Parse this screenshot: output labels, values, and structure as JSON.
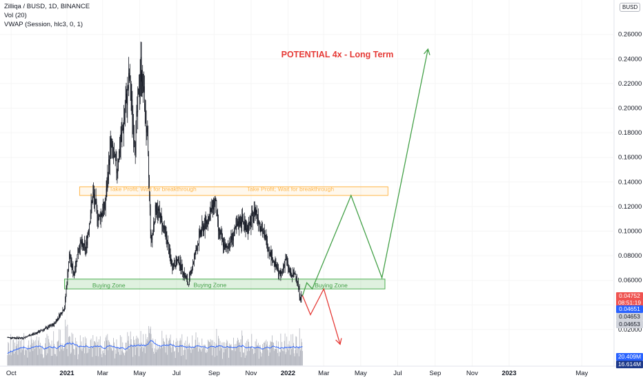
{
  "legend": {
    "title": "Zilliqa / BUSD, 1D, BINANCE",
    "volume": "Vol (20)",
    "vwap": "VWAP (Session, hlc3, 0, 1)"
  },
  "currency_button": "BUSD",
  "annotations": {
    "headline": "POTENTIAL 4x - Long Term",
    "take_profit_1": "Take Profit; Wait for breakthrough",
    "take_profit_2": "Take Profit; Wait for breakthrough",
    "buying_zone_1": "Buying Zone",
    "buying_zone_2": "Buying Zone",
    "buying_zone_3": "Buying Zone"
  },
  "badges": {
    "last_price": "0.04752",
    "countdown": "08:51:19",
    "vwap_price": "0.04651",
    "price_a": "0.04653",
    "price_b": "0.04653",
    "volume_ma": "20.409M",
    "volume": "16.614M"
  },
  "colors": {
    "zone_green": "#4caf50",
    "zone_orange": "#ffb74d",
    "headline_red": "#e53935",
    "projection_green": "#43a047",
    "projection_red": "#e53935",
    "vwap_blue": "#2962ff",
    "candle": "#131722",
    "volume_bar": "#b2b5be",
    "badge_red": "#ef5350",
    "badge_blue": "#2962ff",
    "badge_gray": "#d1d4dc",
    "badge_navy": "#1e3a8a"
  },
  "chart_data": {
    "type": "line",
    "symbol": "Zilliqa / BUSD, 1D, BINANCE",
    "x_ticks": [
      "Oct",
      "2021",
      "Mar",
      "May",
      "Jul",
      "Sep",
      "Nov",
      "2022",
      "Mar",
      "May",
      "Jul",
      "Sep",
      "Nov",
      "2023",
      "May"
    ],
    "y_ticks": [
      "0.02000",
      "0.04000",
      "0.06000",
      "0.08000",
      "0.10000",
      "0.12000",
      "0.14000",
      "0.16000",
      "0.18000",
      "0.20000",
      "0.22000",
      "0.24000",
      "0.26000"
    ],
    "ylim": [
      0.0,
      0.274
    ],
    "price_path": [
      [
        "2020-09-25",
        0.0135
      ],
      [
        "2020-10-20",
        0.013
      ],
      [
        "2020-11-15",
        0.018
      ],
      [
        "2020-12-10",
        0.024
      ],
      [
        "2020-12-28",
        0.038
      ],
      [
        "2021-01-05",
        0.08
      ],
      [
        "2021-01-12",
        0.065
      ],
      [
        "2021-01-22",
        0.09
      ],
      [
        "2021-02-01",
        0.085
      ],
      [
        "2021-02-13",
        0.13
      ],
      [
        "2021-02-22",
        0.11
      ],
      [
        "2021-03-05",
        0.12
      ],
      [
        "2021-03-14",
        0.17
      ],
      [
        "2021-03-24",
        0.15
      ],
      [
        "2021-04-05",
        0.19
      ],
      [
        "2021-04-14",
        0.225
      ],
      [
        "2021-04-23",
        0.17
      ],
      [
        "2021-05-03",
        0.235
      ],
      [
        "2021-05-09",
        0.205
      ],
      [
        "2021-05-14",
        0.17
      ],
      [
        "2021-05-20",
        0.09
      ],
      [
        "2021-05-28",
        0.12
      ],
      [
        "2021-06-05",
        0.11
      ],
      [
        "2021-06-14",
        0.095
      ],
      [
        "2021-06-23",
        0.072
      ],
      [
        "2021-07-05",
        0.076
      ],
      [
        "2021-07-20",
        0.057
      ],
      [
        "2021-07-30",
        0.078
      ],
      [
        "2021-08-10",
        0.1
      ],
      [
        "2021-08-20",
        0.108
      ],
      [
        "2021-09-03",
        0.125
      ],
      [
        "2021-09-08",
        0.1
      ],
      [
        "2021-09-20",
        0.085
      ],
      [
        "2021-10-01",
        0.095
      ],
      [
        "2021-10-15",
        0.11
      ],
      [
        "2021-10-28",
        0.102
      ],
      [
        "2021-11-08",
        0.118
      ],
      [
        "2021-11-20",
        0.1
      ],
      [
        "2021-12-01",
        0.085
      ],
      [
        "2021-12-10",
        0.073
      ],
      [
        "2021-12-20",
        0.063
      ],
      [
        "2021-12-28",
        0.078
      ],
      [
        "2022-01-06",
        0.063
      ],
      [
        "2022-01-14",
        0.066
      ],
      [
        "2022-01-21",
        0.046
      ],
      [
        "2022-01-25",
        0.0475
      ]
    ],
    "projection_up": [
      [
        "2022-01-25",
        0.0475
      ],
      [
        "2022-02-01",
        0.058
      ],
      [
        "2022-02-10",
        0.053
      ],
      [
        "2022-04-15",
        0.129
      ],
      [
        "2022-06-05",
        0.062
      ],
      [
        "2022-08-20",
        0.248
      ]
    ],
    "projection_down": [
      [
        "2022-01-25",
        0.0475
      ],
      [
        "2022-02-07",
        0.032
      ],
      [
        "2022-03-01",
        0.053
      ],
      [
        "2022-03-28",
        0.008
      ]
    ],
    "zones": [
      {
        "name": "Take Profit",
        "start": "2021-01-22",
        "end": "2022-06-15",
        "low": 0.129,
        "high": 0.136
      },
      {
        "name": "Buying Zone",
        "start": "2020-12-28",
        "end": "2022-06-10",
        "low": 0.053,
        "high": 0.061
      }
    ],
    "volume_ma": "20.409M",
    "last_volume": "16.614M"
  }
}
